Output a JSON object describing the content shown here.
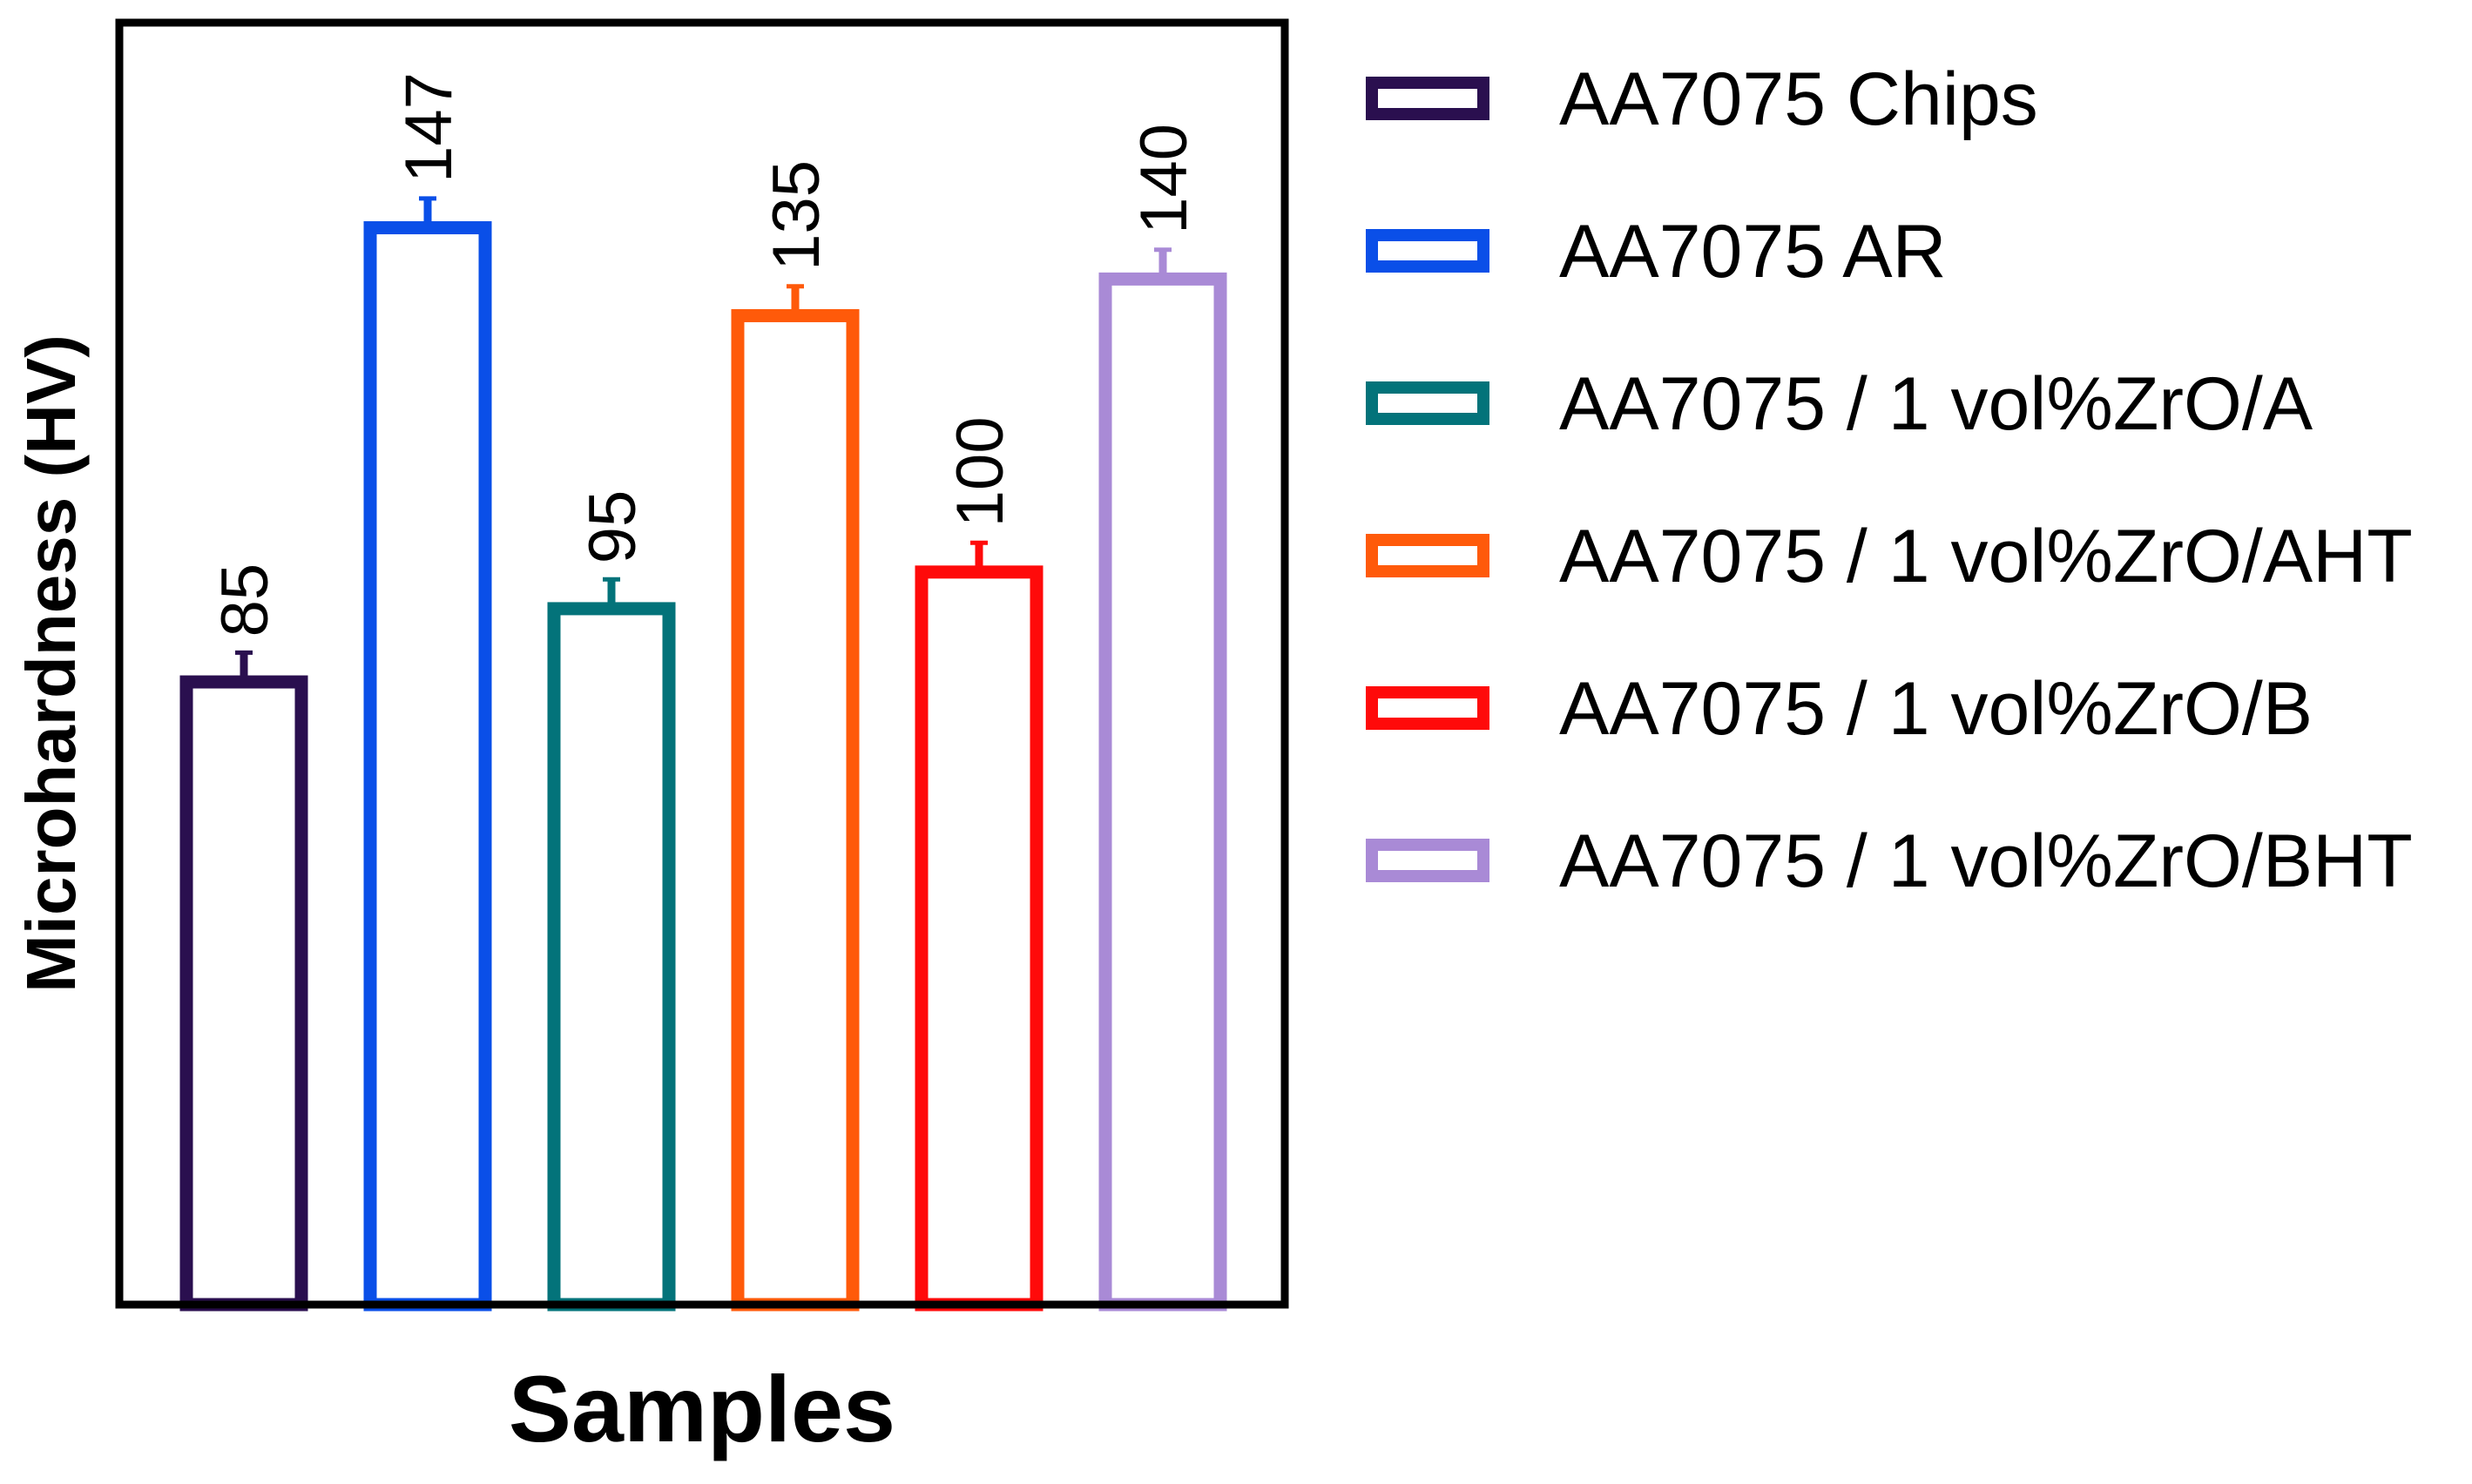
{
  "chart_data": {
    "type": "bar",
    "title": "",
    "xlabel": "Samples",
    "ylabel": "Microhardness (HV)",
    "ylim": [
      0,
      175
    ],
    "grid": false,
    "legend_position": "right",
    "categories": [
      "AA7075 Chips",
      "AA7075 AR",
      "AA7075 / 1 vol%ZrO/A",
      "AA7075 / 1 vol%ZrO/AHT",
      "AA7075 / 1 vol%ZrO/B",
      "AA7075 / 1 vol%ZrO/BHT"
    ],
    "values": [
      85,
      147,
      95,
      135,
      100,
      140
    ],
    "errors": [
      4,
      4,
      4,
      4,
      4,
      4
    ],
    "data_labels": [
      "85",
      "147",
      "95",
      "135",
      "100",
      "140"
    ],
    "colors": [
      "#2a0f4f",
      "#0a4fe8",
      "#03737a",
      "#ff5a0a",
      "#ff0a0a",
      "#a98ad6"
    ]
  }
}
